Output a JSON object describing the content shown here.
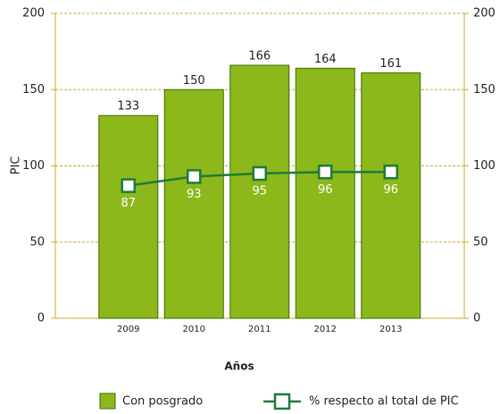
{
  "chart_data": {
    "type": "bar",
    "categories": [
      "2009",
      "2010",
      "2011",
      "2012",
      "2013"
    ],
    "series": [
      {
        "name": "Con posgrado",
        "type": "bar",
        "color": "#8cb81c",
        "values": [
          133,
          150,
          166,
          164,
          161
        ]
      },
      {
        "name": "% respecto al total de PIC",
        "type": "line",
        "axis": "y2",
        "color": "#1f7a3a",
        "values": [
          87,
          93,
          95,
          96,
          96
        ]
      }
    ],
    "xlabel": "Años",
    "ylabel": "PIC",
    "ylim": [
      0,
      200
    ],
    "yticks": [
      0,
      50,
      100,
      150,
      200
    ],
    "y2lim": [
      0,
      200
    ],
    "y2ticks": [
      0,
      50,
      100,
      150,
      200
    ],
    "grid": true
  }
}
